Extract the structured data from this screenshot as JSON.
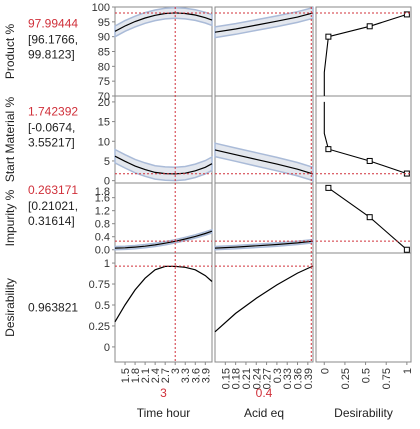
{
  "chart_data": {
    "type": "line",
    "title": "",
    "factors": [
      {
        "name": "Time hour",
        "current": "3",
        "current_value": 3,
        "range": [
          1.2,
          4.1
        ],
        "ticks": [
          "1.5",
          "1.8",
          "2.1",
          "2.4",
          "2.7",
          "3",
          "3.3",
          "3.6",
          "3.9"
        ]
      },
      {
        "name": "Acid eq",
        "current": "0.4",
        "current_value": 0.4,
        "range": [
          0.12,
          0.405
        ],
        "ticks": [
          "0.15",
          "0.18",
          "0.21",
          "0.24",
          "0.27",
          "0.3",
          "0.33",
          "0.36",
          "0.39"
        ]
      },
      {
        "name": "Desirability",
        "current": "",
        "current_value": null,
        "range": [
          -0.1,
          1.05
        ],
        "ticks": [
          "0",
          "0.25",
          "0.5",
          "0.75",
          "1"
        ]
      }
    ],
    "responses": [
      {
        "name": "Product %",
        "value": "97.99444",
        "ci": [
          "[96.1766,",
          "99.8123]"
        ],
        "ylim": [
          70,
          100
        ],
        "ticks": [
          "70",
          "75",
          "80",
          "85",
          "90",
          "95",
          "100"
        ],
        "time": {
          "x": [
            1.2,
            1.5,
            1.8,
            2.1,
            2.4,
            2.7,
            3.0,
            3.3,
            3.6,
            3.9,
            4.1
          ],
          "y": [
            91.8,
            93.6,
            95.1,
            96.3,
            97.2,
            97.8,
            98.0,
            97.8,
            97.3,
            96.4,
            95.6
          ]
        },
        "acid": {
          "x": [
            0.12,
            0.18,
            0.24,
            0.3,
            0.36,
            0.405
          ],
          "y": [
            91.5,
            92.6,
            93.9,
            95.2,
            96.6,
            98.0
          ]
        },
        "ci_halfwidth": 1.8,
        "desirability": {
          "x": [
            0.0,
            0.0,
            0.05,
            0.55,
            1.0
          ],
          "y": [
            70.0,
            78.0,
            90.0,
            93.5,
            97.5
          ]
        },
        "markers": [
          {
            "x": 0.05,
            "y": 90.0
          },
          {
            "x": 0.55,
            "y": 93.5
          },
          {
            "x": 1.0,
            "y": 97.5
          }
        ],
        "target": 97.99444
      },
      {
        "name": "Start Material %",
        "value": "1.742392",
        "ci": [
          "[-0.0674,",
          "3.55217]"
        ],
        "ylim": [
          -0.6,
          21.5
        ],
        "ticks": [
          "0",
          "5",
          "10",
          "15",
          "20"
        ],
        "time": {
          "x": [
            1.2,
            1.5,
            1.8,
            2.1,
            2.4,
            2.7,
            3.0,
            3.3,
            3.6,
            3.9,
            4.1
          ],
          "y": [
            6.2,
            4.9,
            3.7,
            2.8,
            2.1,
            1.8,
            1.7,
            1.9,
            2.5,
            3.4,
            4.3
          ]
        },
        "acid": {
          "x": [
            0.12,
            0.18,
            0.24,
            0.3,
            0.36,
            0.405
          ],
          "y": [
            7.8,
            6.6,
            5.4,
            4.2,
            2.9,
            1.7
          ]
        },
        "ci_halfwidth": 1.7,
        "desirability": {
          "x": [
            1.0,
            0.55,
            0.05,
            0.0,
            0.0
          ],
          "y": [
            1.8,
            5.0,
            8.0,
            12.0,
            20.0
          ]
        },
        "markers": [
          {
            "x": 0.05,
            "y": 8.0
          },
          {
            "x": 0.55,
            "y": 5.0
          },
          {
            "x": 1.0,
            "y": 1.8
          }
        ],
        "target": 1.742392
      },
      {
        "name": "Impurity %",
        "value": "0.263171",
        "ci": [
          "[0.21021,",
          "0.31614]"
        ],
        "ylim": [
          -0.1,
          2.05
        ],
        "ticks": [
          "0.0",
          "0.4",
          "0.8",
          "1.2",
          "1.6"
        ],
        "extra_ticks": [
          "1.8"
        ],
        "time": {
          "x": [
            1.2,
            1.5,
            1.8,
            2.1,
            2.4,
            2.7,
            3.0,
            3.3,
            3.6,
            3.9,
            4.1
          ],
          "y": [
            0.05,
            0.06,
            0.08,
            0.11,
            0.15,
            0.2,
            0.26,
            0.33,
            0.41,
            0.5,
            0.57
          ]
        },
        "acid": {
          "x": [
            0.12,
            0.18,
            0.24,
            0.3,
            0.36,
            0.405
          ],
          "y": [
            0.05,
            0.08,
            0.12,
            0.16,
            0.21,
            0.263
          ]
        },
        "ci_halfwidth": 0.05,
        "desirability": {
          "x": [
            0.05,
            0.55,
            1.0
          ],
          "y": [
            1.9,
            1.0,
            0.0
          ]
        },
        "markers": [
          {
            "x": 0.05,
            "y": 1.9
          },
          {
            "x": 0.55,
            "y": 1.0
          },
          {
            "x": 1.0,
            "y": 0.0
          }
        ],
        "target": 0.263171
      },
      {
        "name": "Desirability",
        "value": "0.963821",
        "ylim": [
          -0.18,
          1.12
        ],
        "ticks": [
          "0",
          "0.25",
          "0.5",
          "0.75",
          "1"
        ],
        "time": {
          "x": [
            1.2,
            1.5,
            1.8,
            2.1,
            2.4,
            2.7,
            3.0,
            3.3,
            3.6,
            3.9,
            4.1
          ],
          "y": [
            0.3,
            0.5,
            0.68,
            0.82,
            0.92,
            0.96,
            0.96,
            0.95,
            0.92,
            0.85,
            0.78
          ]
        },
        "acid": {
          "x": [
            0.12,
            0.18,
            0.24,
            0.3,
            0.36,
            0.405
          ],
          "y": [
            0.18,
            0.4,
            0.58,
            0.74,
            0.88,
            0.965
          ]
        },
        "target": 0.963821
      }
    ],
    "colors": {
      "current": "#d0303a",
      "band": "#aabbd8",
      "line": "#000000",
      "grid": "#888888"
    }
  }
}
